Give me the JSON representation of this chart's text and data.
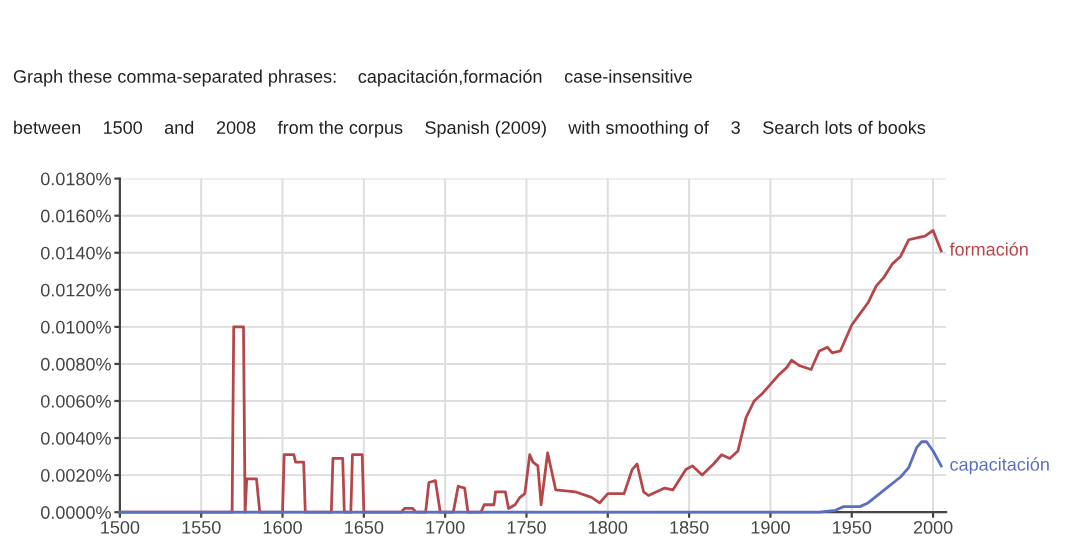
{
  "chart_data": {
    "type": "line",
    "annotations": [
      "Graph these comma-separated phrases:",
      "capacitación,formación",
      "case-insensitive",
      "between",
      "1500",
      "and",
      "2008",
      "from the corpus",
      "Spanish (2009)",
      "with smoothing of",
      "3",
      "Search lots of books"
    ],
    "series": [
      {
        "name": "formación",
        "color": "#b5474b",
        "x": [
          1500,
          1569,
          1570,
          1576,
          1577,
          1578,
          1584,
          1586,
          1600,
          1601,
          1607,
          1608,
          1613,
          1614,
          1630,
          1631,
          1637,
          1638,
          1642,
          1643,
          1649,
          1650,
          1673,
          1675,
          1680,
          1682,
          1688,
          1690,
          1694,
          1697,
          1705,
          1708,
          1712,
          1714,
          1722,
          1724,
          1730,
          1731,
          1737,
          1739,
          1743,
          1746,
          1749,
          1752,
          1754,
          1757,
          1759,
          1763,
          1768,
          1780,
          1790,
          1795,
          1800,
          1810,
          1815,
          1818,
          1822,
          1825,
          1835,
          1840,
          1848,
          1852,
          1858,
          1865,
          1870,
          1875,
          1880,
          1885,
          1890,
          1895,
          1900,
          1905,
          1910,
          1913,
          1918,
          1925,
          1930,
          1935,
          1938,
          1943,
          1950,
          1955,
          1960,
          1965,
          1970,
          1975,
          1980,
          1985,
          1990,
          1995,
          2000,
          2005
        ],
        "values": [
          0,
          0,
          0.01,
          0.01,
          0,
          0.0018,
          0.0018,
          0,
          0,
          0.0031,
          0.0031,
          0.0027,
          0.0027,
          0,
          0,
          0.0029,
          0.0029,
          0,
          0,
          0.0031,
          0.0031,
          0,
          0,
          0.0002,
          0.0002,
          0,
          0,
          0.0016,
          0.0017,
          0,
          0,
          0.0014,
          0.0013,
          0,
          0,
          0.0004,
          0.0004,
          0.0011,
          0.0011,
          0.0002,
          0.0004,
          0.0008,
          0.001,
          0.0031,
          0.0027,
          0.0025,
          0.0004,
          0.0032,
          0.0012,
          0.0011,
          0.0008,
          0.0005,
          0.001,
          0.001,
          0.0023,
          0.0026,
          0.0011,
          0.0009,
          0.0013,
          0.0012,
          0.0023,
          0.0025,
          0.002,
          0.0026,
          0.0031,
          0.0029,
          0.0033,
          0.0051,
          0.006,
          0.0064,
          0.0069,
          0.0074,
          0.0078,
          0.0082,
          0.0079,
          0.0077,
          0.0087,
          0.0089,
          0.0086,
          0.0087,
          0.0101,
          0.0107,
          0.0113,
          0.0122,
          0.0127,
          0.0134,
          0.0138,
          0.0147,
          0.0148,
          0.0149,
          0.0152,
          0.0141
        ]
      },
      {
        "name": "capacitación",
        "color": "#5b6fbf",
        "x": [
          1500,
          1930,
          1940,
          1945,
          1955,
          1960,
          1970,
          1980,
          1985,
          1990,
          1993,
          1996,
          2000,
          2005
        ],
        "values": [
          0,
          0,
          0.0001,
          0.0003,
          0.0003,
          0.0005,
          0.0012,
          0.0019,
          0.0024,
          0.0035,
          0.0038,
          0.0038,
          0.0033,
          0.0025
        ]
      }
    ],
    "xlim": [
      1500,
      2008
    ],
    "xticks": [
      1500,
      1550,
      1600,
      1650,
      1700,
      1750,
      1800,
      1850,
      1900,
      1950,
      2000
    ],
    "ylim": [
      0,
      0.018
    ],
    "yticks": [
      {
        "value": 0,
        "label": "0.0000%"
      },
      {
        "value": 0.002,
        "label": "0.0020%"
      },
      {
        "value": 0.004,
        "label": "0.0040%"
      },
      {
        "value": 0.006,
        "label": "0.0060%"
      },
      {
        "value": 0.008,
        "label": "0.0080%"
      },
      {
        "value": 0.01,
        "label": "0.0100%"
      },
      {
        "value": 0.012,
        "label": "0.0120%"
      },
      {
        "value": 0.014,
        "label": "0.0140%"
      },
      {
        "value": 0.016,
        "label": "0.0160%"
      },
      {
        "value": 0.018,
        "label": "0.0180%"
      }
    ],
    "grid": true
  }
}
